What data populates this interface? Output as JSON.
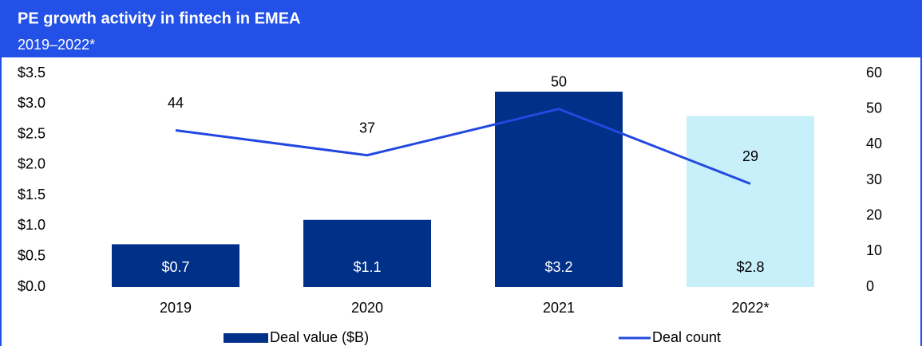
{
  "chart_data": {
    "type": "combo",
    "title": "PE growth activity in fintech in EMEA",
    "subtitle": "2019–2022*",
    "categories": [
      "2019",
      "2020",
      "2021",
      "2022*"
    ],
    "series": [
      {
        "name": "Deal value ($B)",
        "type": "bar",
        "color": "#003087",
        "colors": [
          "#003087",
          "#003087",
          "#003087",
          "#c8f0fb"
        ],
        "values": [
          0.7,
          1.1,
          3.2,
          2.8
        ],
        "value_labels": [
          "$0.7",
          "$1.1",
          "$3.2",
          "$2.8"
        ]
      },
      {
        "name": "Deal count",
        "type": "line",
        "axis": "y2",
        "color": "#2348e0",
        "values": [
          44,
          37,
          50,
          29
        ]
      }
    ],
    "ylim": [
      0,
      3.5
    ],
    "yticks": [
      {
        "value": 0,
        "label": "$0.0"
      },
      {
        "value": 0.5,
        "label": "$0.5"
      },
      {
        "value": 1,
        "label": "$1.0"
      },
      {
        "value": 1.5,
        "label": "$1.5"
      },
      {
        "value": 2,
        "label": "$2.0"
      },
      {
        "value": 2.5,
        "label": "$2.5"
      },
      {
        "value": 3,
        "label": "$3.0"
      },
      {
        "value": 3.5,
        "label": "$3.5"
      }
    ],
    "y2lim": [
      0,
      60
    ],
    "y2ticks": [
      0,
      10,
      20,
      30,
      40,
      50,
      60
    ]
  }
}
